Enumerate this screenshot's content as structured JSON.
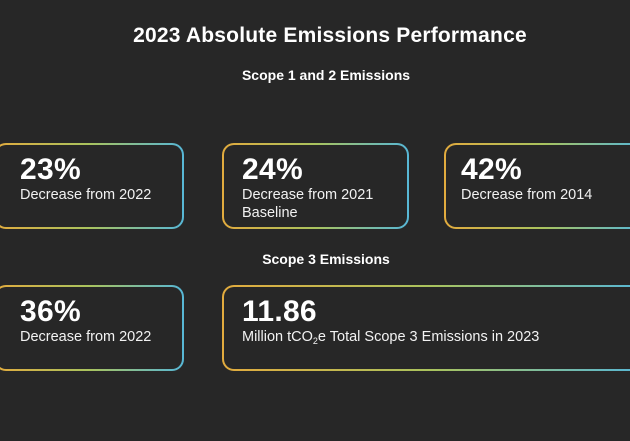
{
  "title": "2023 Absolute Emissions Performance",
  "sections": {
    "scope12": "Scope 1 and 2 Emissions",
    "scope3": "Scope 3 Emissions"
  },
  "cards": [
    {
      "value": "23%",
      "desc": "Decrease from 2022"
    },
    {
      "value": "24%",
      "desc": "Decrease from 2021 Baseline"
    },
    {
      "value": "42%",
      "desc": "Decrease from 2014"
    },
    {
      "value": "36%",
      "desc": "Decrease from 2022"
    },
    {
      "value": "11.86",
      "desc_prefix": "Million tCO",
      "desc_sub": "2",
      "desc_suffix": "e Total Scope 3 Emissions in 2023"
    }
  ],
  "colors": {
    "background": "#272727",
    "border_gradient_start": "#e2ab3e",
    "border_gradient_mid": "#a9c35e",
    "border_gradient_end": "#57b7d6"
  }
}
